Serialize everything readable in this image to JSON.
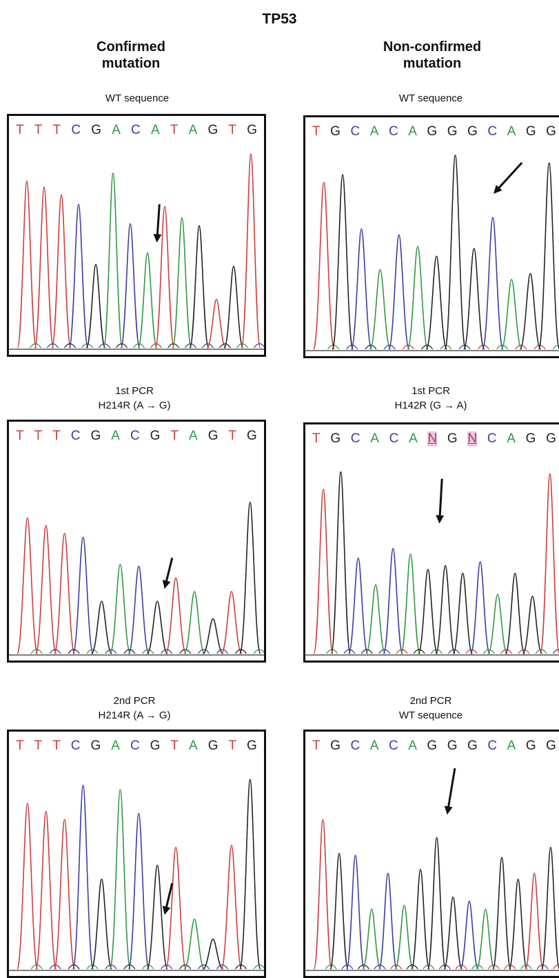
{
  "figure": {
    "title": "TP53",
    "columns": [
      {
        "heading_line1": "Confirmed",
        "heading_line2": "mutation"
      },
      {
        "heading_line1": "Non-confirmed",
        "heading_line2": "mutation"
      }
    ],
    "colors": {
      "A": "#2e9a3e",
      "C": "#3b3ba8",
      "G": "#222222",
      "T": "#d23a3a",
      "N": "#b0307a"
    },
    "panels": [
      {
        "id": "c1",
        "caption_line1": "WT sequence",
        "caption_line2": "",
        "sequence": [
          "T",
          "T",
          "T",
          "C",
          "G",
          "A",
          "C",
          "A",
          "T",
          "A",
          "G",
          "T",
          "G"
        ]
      },
      {
        "id": "n1",
        "caption_line1": "WT sequence",
        "caption_line2": "",
        "sequence": [
          "T",
          "G",
          "C",
          "A",
          "C",
          "A",
          "G",
          "G",
          "G",
          "C",
          "A",
          "G",
          "G"
        ]
      },
      {
        "id": "c2",
        "caption_line1": "1st PCR",
        "caption_line2": "H214R (A → G)",
        "sequence": [
          "T",
          "T",
          "T",
          "C",
          "G",
          "A",
          "C",
          "G",
          "T",
          "A",
          "G",
          "T",
          "G"
        ]
      },
      {
        "id": "n2",
        "caption_line1": "1st PCR",
        "caption_line2": "H142R (G → A)",
        "sequence": [
          "T",
          "G",
          "C",
          "A",
          "C",
          "A",
          "N",
          "G",
          "N",
          "C",
          "A",
          "G",
          "G"
        ]
      },
      {
        "id": "c3",
        "caption_line1": "2nd PCR",
        "caption_line2": "H214R (A → G)",
        "sequence": [
          "T",
          "T",
          "T",
          "C",
          "G",
          "A",
          "C",
          "G",
          "T",
          "A",
          "G",
          "T",
          "G"
        ]
      },
      {
        "id": "n3",
        "caption_line1": "2nd PCR",
        "caption_line2": "WT sequence",
        "sequence": [
          "T",
          "G",
          "C",
          "A",
          "C",
          "A",
          "G",
          "G",
          "G",
          "C",
          "A",
          "G",
          "G"
        ]
      }
    ]
  }
}
